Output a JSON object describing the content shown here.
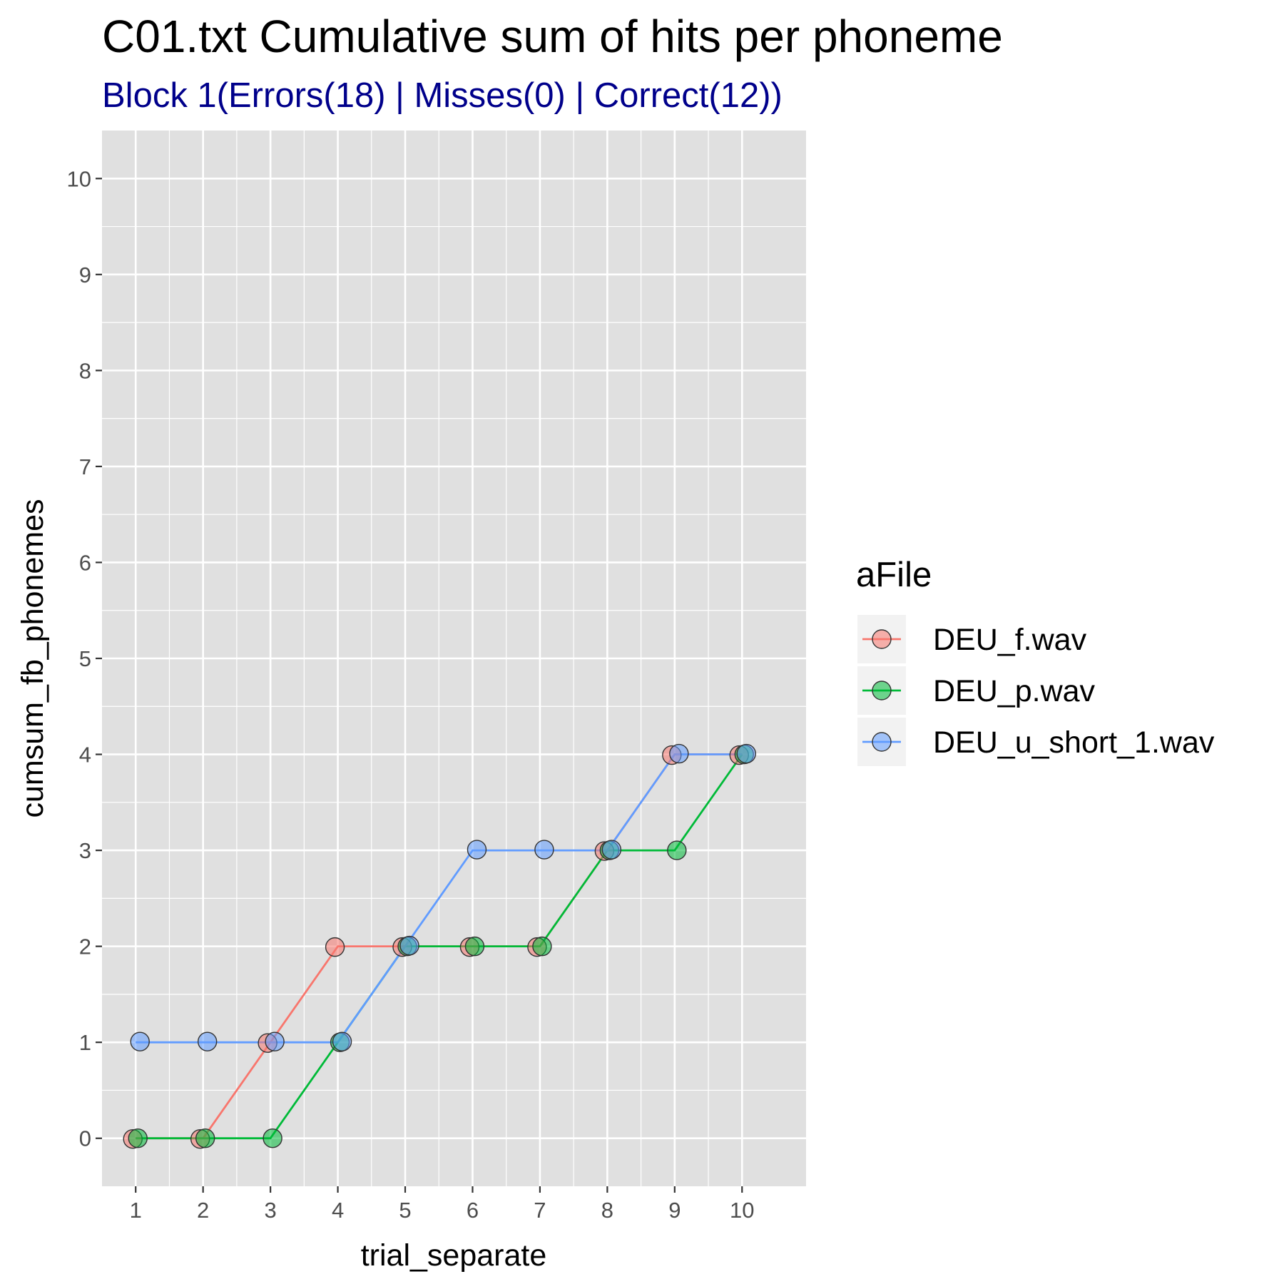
{
  "colors": {
    "panel_bg": "#E0E0E0",
    "grid": "#FFFFFF",
    "legend_key_bg": "#F2F2F2",
    "subtitle": "#00008B",
    "point_outline": "#333333"
  },
  "chart_data": {
    "type": "line",
    "title": "C01.txt Cumulative sum of hits per phoneme",
    "subtitle": "Block 1(Errors(18) | Misses(0) | Correct(12))",
    "xlabel": "trial_separate",
    "ylabel": "cumsum_fb_phonemes",
    "xlim": [
      0.5,
      10.95
    ],
    "ylim": [
      -0.5,
      10.5
    ],
    "xticks": [
      1,
      2,
      3,
      4,
      5,
      6,
      7,
      8,
      9,
      10
    ],
    "yticks": [
      0,
      1,
      2,
      3,
      4,
      5,
      6,
      7,
      8,
      9,
      10
    ],
    "grid": true,
    "legend": {
      "title": "aFile",
      "position": "right"
    },
    "series": [
      {
        "name": "DEU_f.wav",
        "color": "#F8766D",
        "x": [
          1,
          2,
          3,
          4,
          5,
          6,
          7,
          8,
          9,
          10
        ],
        "y": [
          0,
          0,
          1,
          2,
          2,
          2,
          2,
          3,
          4,
          4
        ]
      },
      {
        "name": "DEU_p.wav",
        "color": "#00BA38",
        "x": [
          1,
          2,
          3,
          4,
          5,
          6,
          7,
          8,
          9,
          10
        ],
        "y": [
          0,
          0,
          0,
          1,
          2,
          2,
          2,
          3,
          3,
          4
        ]
      },
      {
        "name": "DEU_u_short_1.wav",
        "color": "#619CFF",
        "x": [
          1,
          2,
          3,
          4,
          5,
          6,
          7,
          8,
          9,
          10
        ],
        "y": [
          1,
          1,
          1,
          1,
          2,
          3,
          3,
          3,
          4,
          4
        ]
      }
    ]
  }
}
